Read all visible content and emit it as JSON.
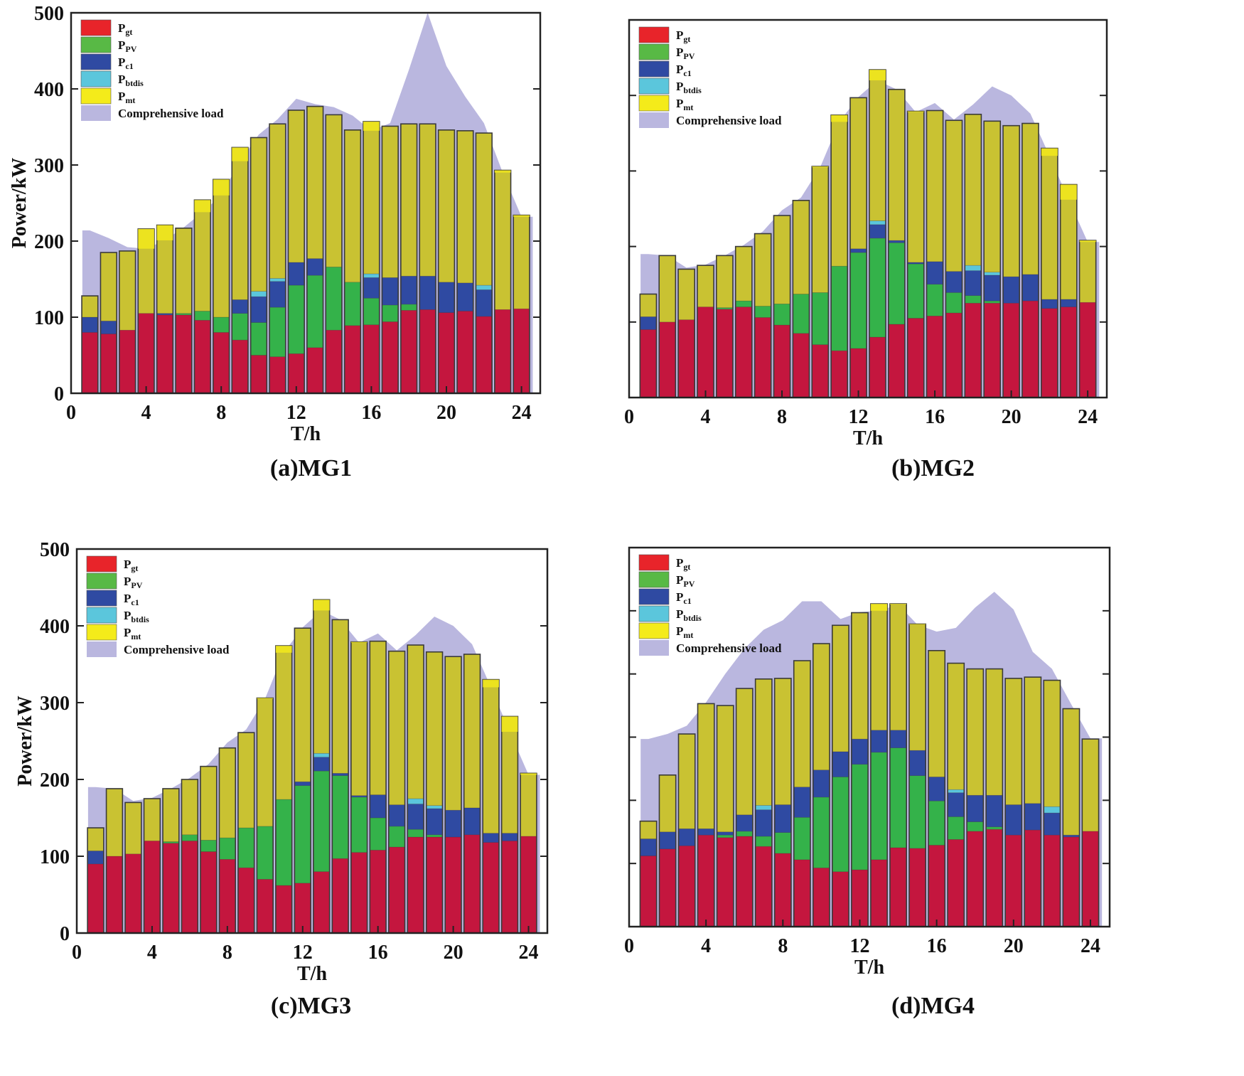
{
  "colors": {
    "gt": "#c4163e",
    "pv": "#34b24a",
    "c1": "#2f4aa2",
    "btdis": "#5bc6dc",
    "mt": "#c9c232",
    "load": "#bab7df",
    "gt_legend": "#e8242a",
    "pv_legend": "#58b945",
    "c1_legend": "#2f4aa2",
    "btdis_legend": "#5bc6dc",
    "mt_legend": "#f4eb1a",
    "mt_over": "#f2e91c",
    "frame": "#222222"
  },
  "legend": {
    "items": [
      {
        "key": "gt",
        "main": "P",
        "sub": "gt"
      },
      {
        "key": "pv",
        "main": "P",
        "sub": "PV"
      },
      {
        "key": "c1",
        "main": "P",
        "sub": "c1"
      },
      {
        "key": "btdis",
        "main": "P",
        "sub": "btdis"
      },
      {
        "key": "mt",
        "main": "P",
        "sub": "mt"
      }
    ],
    "load_label": "Comprehensive load"
  },
  "chart_data": [
    {
      "type": "bar",
      "caption": "(a)MG1",
      "xlabel": "T/h",
      "ylabel": "Power/kW",
      "xlim": [
        0,
        25
      ],
      "ylim": [
        0,
        500
      ],
      "xticks": [
        0,
        4,
        8,
        12,
        16,
        20,
        24
      ],
      "yticks": [
        0,
        100,
        200,
        300,
        400,
        500
      ],
      "hours": [
        1,
        2,
        3,
        4,
        5,
        6,
        7,
        8,
        9,
        10,
        11,
        12,
        13,
        14,
        15,
        16,
        17,
        18,
        19,
        20,
        21,
        22,
        23,
        24
      ],
      "series": [
        {
          "key": "gt",
          "name": "P_gt",
          "values": [
            80,
            78,
            83,
            105,
            103,
            103,
            96,
            80,
            70,
            50,
            48,
            52,
            60,
            83,
            89,
            90,
            94,
            109,
            110,
            106,
            108,
            101,
            110,
            111
          ]
        },
        {
          "key": "pv",
          "name": "P_PV",
          "values": [
            0,
            0,
            0,
            0,
            0,
            2,
            12,
            20,
            35,
            43,
            65,
            90,
            95,
            83,
            57,
            35,
            22,
            8,
            0,
            0,
            0,
            0,
            0,
            0
          ]
        },
        {
          "key": "c1",
          "name": "P_c1",
          "values": [
            20,
            17,
            0,
            0,
            2,
            0,
            0,
            0,
            18,
            34,
            34,
            30,
            22,
            0,
            0,
            27,
            36,
            37,
            44,
            40,
            37,
            35,
            0,
            0
          ]
        },
        {
          "key": "btdis",
          "name": "P_btdis",
          "values": [
            0,
            0,
            0,
            0,
            0,
            0,
            0,
            0,
            0,
            7,
            4,
            0,
            0,
            0,
            0,
            5,
            0,
            0,
            0,
            0,
            0,
            6,
            0,
            0
          ]
        },
        {
          "key": "mt",
          "name": "P_mt",
          "values": [
            28,
            90,
            104,
            111,
            116,
            112,
            146,
            181,
            200,
            202,
            203,
            200,
            200,
            200,
            200,
            200,
            199,
            200,
            200,
            200,
            200,
            200,
            183,
            123
          ]
        }
      ],
      "load": [
        214,
        204,
        192,
        190,
        201,
        218,
        238,
        260,
        305,
        340,
        360,
        387,
        380,
        376,
        365,
        345,
        355,
        425,
        500,
        430,
        390,
        355,
        290,
        232
      ],
      "load_ends": [
        0.6,
        24.6
      ]
    },
    {
      "type": "bar",
      "caption": "(b)MG2",
      "xlabel": "T/h",
      "ylabel": "Power/kW",
      "xlim": [
        0,
        25
      ],
      "ylim": [
        0,
        500
      ],
      "xticks": [
        0,
        4,
        8,
        12,
        16,
        20,
        24
      ],
      "yticks": [
        0,
        100,
        200,
        300,
        400,
        500
      ],
      "hours": [
        1,
        2,
        3,
        4,
        5,
        6,
        7,
        8,
        9,
        10,
        11,
        12,
        13,
        14,
        15,
        16,
        17,
        18,
        19,
        20,
        21,
        22,
        23,
        24
      ],
      "series": [
        {
          "key": "gt",
          "name": "P_gt",
          "values": [
            90,
            100,
            103,
            120,
            117,
            120,
            106,
            96,
            85,
            70,
            62,
            65,
            80,
            97,
            105,
            108,
            112,
            125,
            125,
            125,
            128,
            118,
            120,
            126
          ]
        },
        {
          "key": "pv",
          "name": "P_PV",
          "values": [
            0,
            0,
            0,
            0,
            2,
            8,
            15,
            28,
            52,
            69,
            112,
            127,
            131,
            108,
            72,
            42,
            27,
            10,
            3,
            0,
            0,
            0,
            0,
            0
          ]
        },
        {
          "key": "c1",
          "name": "P_c1",
          "values": [
            17,
            0,
            0,
            0,
            0,
            0,
            0,
            0,
            0,
            0,
            0,
            5,
            18,
            3,
            2,
            30,
            28,
            33,
            34,
            35,
            35,
            12,
            10,
            0
          ]
        },
        {
          "key": "btdis",
          "name": "P_btdis",
          "values": [
            0,
            0,
            0,
            0,
            0,
            0,
            0,
            0,
            0,
            0,
            0,
            0,
            5,
            0,
            0,
            0,
            0,
            7,
            4,
            0,
            0,
            0,
            0,
            0
          ]
        },
        {
          "key": "mt",
          "name": "P_mt",
          "values": [
            30,
            88,
            67,
            55,
            69,
            72,
            96,
            117,
            124,
            167,
            200,
            200,
            200,
            200,
            200,
            200,
            200,
            200,
            200,
            200,
            200,
            200,
            152,
            82
          ]
        }
      ],
      "load": [
        190,
        188,
        172,
        176,
        188,
        202,
        220,
        248,
        265,
        305,
        365,
        398,
        420,
        408,
        378,
        390,
        368,
        388,
        412,
        400,
        376,
        320,
        262,
        206
      ],
      "load_ends": [
        0.6,
        24.6
      ]
    },
    {
      "type": "bar",
      "caption": "(c)MG3",
      "xlabel": "T/h",
      "ylabel": "Power/kW",
      "xlim": [
        0,
        25
      ],
      "ylim": [
        0,
        500
      ],
      "xticks": [
        0,
        4,
        8,
        12,
        16,
        20,
        24
      ],
      "yticks": [
        0,
        100,
        200,
        300,
        400,
        500
      ],
      "hours": [
        1,
        2,
        3,
        4,
        5,
        6,
        7,
        8,
        9,
        10,
        11,
        12,
        13,
        14,
        15,
        16,
        17,
        18,
        19,
        20,
        21,
        22,
        23,
        24
      ],
      "series": [
        {
          "key": "gt",
          "name": "P_gt",
          "values": [
            90,
            100,
            103,
            120,
            117,
            120,
            106,
            96,
            85,
            70,
            62,
            65,
            80,
            97,
            105,
            108,
            112,
            125,
            125,
            125,
            128,
            118,
            120,
            126
          ]
        },
        {
          "key": "pv",
          "name": "P_PV",
          "values": [
            0,
            0,
            0,
            0,
            2,
            8,
            15,
            28,
            52,
            69,
            112,
            127,
            131,
            108,
            72,
            42,
            27,
            10,
            3,
            0,
            0,
            0,
            0,
            0
          ]
        },
        {
          "key": "c1",
          "name": "P_c1",
          "values": [
            17,
            0,
            0,
            0,
            0,
            0,
            0,
            0,
            0,
            0,
            0,
            5,
            18,
            3,
            2,
            30,
            28,
            33,
            34,
            35,
            35,
            12,
            10,
            0
          ]
        },
        {
          "key": "btdis",
          "name": "P_btdis",
          "values": [
            0,
            0,
            0,
            0,
            0,
            0,
            0,
            0,
            0,
            0,
            0,
            0,
            5,
            0,
            0,
            0,
            0,
            7,
            4,
            0,
            0,
            0,
            0,
            0
          ]
        },
        {
          "key": "mt",
          "name": "P_mt",
          "values": [
            30,
            88,
            67,
            55,
            69,
            72,
            96,
            117,
            124,
            167,
            200,
            200,
            200,
            200,
            200,
            200,
            200,
            200,
            200,
            200,
            200,
            200,
            152,
            82
          ]
        }
      ],
      "load": [
        190,
        188,
        172,
        176,
        188,
        202,
        220,
        248,
        265,
        305,
        365,
        398,
        420,
        408,
        378,
        390,
        368,
        388,
        412,
        400,
        376,
        320,
        262,
        206
      ],
      "load_ends": [
        0.6,
        24.6
      ]
    },
    {
      "type": "bar",
      "caption": "(d)MG4",
      "xlabel": "T/h",
      "ylabel": "Power/kW",
      "xlim": [
        0,
        25
      ],
      "ylim": [
        0,
        600
      ],
      "xticks": [
        0,
        4,
        8,
        12,
        16,
        20,
        24
      ],
      "yticks": [
        0,
        100,
        200,
        300,
        400,
        500,
        600
      ],
      "hours": [
        1,
        2,
        3,
        4,
        5,
        6,
        7,
        8,
        9,
        10,
        11,
        12,
        13,
        14,
        15,
        16,
        17,
        18,
        19,
        20,
        21,
        22,
        23,
        24
      ],
      "series": [
        {
          "key": "gt",
          "name": "P_gt",
          "values": [
            112,
            123,
            128,
            145,
            141,
            143,
            127,
            116,
            106,
            93,
            87,
            90,
            106,
            125,
            124,
            129,
            138,
            151,
            154,
            145,
            153,
            145,
            142,
            151
          ]
        },
        {
          "key": "pv",
          "name": "P_PV",
          "values": [
            0,
            0,
            0,
            0,
            4,
            8,
            16,
            33,
            67,
            112,
            150,
            167,
            170,
            158,
            115,
            70,
            36,
            15,
            4,
            0,
            0,
            0,
            0,
            0
          ]
        },
        {
          "key": "c1",
          "name": "P_c1",
          "values": [
            27,
            27,
            27,
            10,
            5,
            26,
            42,
            44,
            48,
            43,
            40,
            40,
            35,
            28,
            40,
            38,
            38,
            42,
            50,
            48,
            42,
            35,
            3,
            0
          ]
        },
        {
          "key": "btdis",
          "name": "P_btdis",
          "values": [
            0,
            0,
            0,
            0,
            0,
            0,
            7,
            0,
            0,
            0,
            0,
            0,
            0,
            0,
            0,
            0,
            5,
            0,
            0,
            0,
            0,
            10,
            0,
            0
          ]
        },
        {
          "key": "mt",
          "name": "P_mt",
          "values": [
            28,
            90,
            150,
            198,
            200,
            200,
            200,
            200,
            200,
            200,
            200,
            200,
            200,
            200,
            200,
            200,
            200,
            200,
            200,
            200,
            200,
            200,
            200,
            146
          ]
        }
      ],
      "load": [
        297,
        305,
        318,
        355,
        400,
        440,
        470,
        485,
        515,
        515,
        487,
        498,
        500,
        510,
        478,
        467,
        473,
        505,
        530,
        502,
        435,
        408,
        352,
        298
      ],
      "load_ends": [
        0.6,
        24.6
      ]
    }
  ]
}
